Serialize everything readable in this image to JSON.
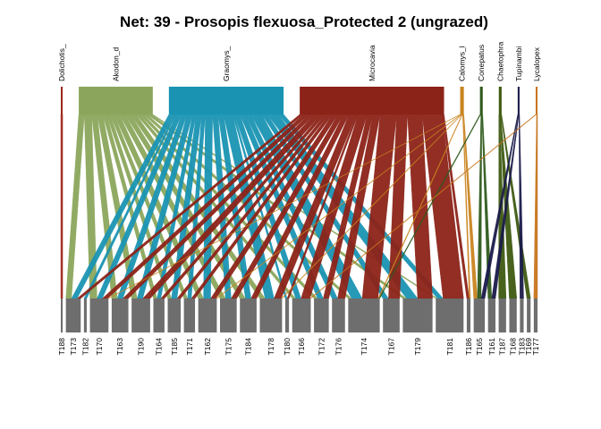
{
  "chart_data": {
    "type": "bipartite-network",
    "title": "Net: 39 - Prosopis flexuosa_Protected 2 (ungrazed)",
    "colors": {
      "upper": {
        "Dolichotis_": "#A0281E",
        "Akodon_d": "#8BA65C",
        "Graomys_": "#1A93B3",
        "Microcavia": "#8C2318",
        "Calomys_": "#C98420",
        "Conepatus": "#2E5A1C",
        "Chaetophractus": "#3E5A12",
        "Tupinambis": "#1A1A4A",
        "Lycalopex": "#C8741E"
      },
      "lower": "#6E6E6E"
    },
    "upper_nodes": [
      {
        "name": "Dolichotis_",
        "label": "Dolichotis_",
        "weight": 1
      },
      {
        "name": "Akodon_d",
        "label": "Akodon_d",
        "weight": 40
      },
      {
        "name": "Graomys_",
        "label": "Graomys_",
        "weight": 62
      },
      {
        "name": "Microcavia",
        "label": "Microcavia",
        "weight": 78
      },
      {
        "name": "Calomys_",
        "label": "Calomys_l",
        "weight": 2
      },
      {
        "name": "Conepatus",
        "label": "Conepatus",
        "weight": 1.5
      },
      {
        "name": "Chaetophractus",
        "label": "Chaetophra",
        "weight": 1.5
      },
      {
        "name": "Tupinambis",
        "label": "Tupinambi",
        "weight": 1
      },
      {
        "name": "Lycalopex",
        "label": "Lycalopex",
        "weight": 1
      }
    ],
    "lower_nodes": [
      {
        "name": "T188",
        "weight": 1
      },
      {
        "name": "T173",
        "weight": 8
      },
      {
        "name": "T182",
        "weight": 1.5
      },
      {
        "name": "T170",
        "weight": 10
      },
      {
        "name": "T163",
        "weight": 9
      },
      {
        "name": "T190",
        "weight": 10
      },
      {
        "name": "T164",
        "weight": 6
      },
      {
        "name": "T185",
        "weight": 7
      },
      {
        "name": "T171",
        "weight": 6
      },
      {
        "name": "T162",
        "weight": 10
      },
      {
        "name": "T175",
        "weight": 9
      },
      {
        "name": "T184",
        "weight": 9
      },
      {
        "name": "T178",
        "weight": 12
      },
      {
        "name": "T180",
        "weight": 2
      },
      {
        "name": "T166",
        "weight": 10
      },
      {
        "name": "T172",
        "weight": 8
      },
      {
        "name": "T176",
        "weight": 7
      },
      {
        "name": "T174",
        "weight": 17
      },
      {
        "name": "T167",
        "weight": 9
      },
      {
        "name": "T179",
        "weight": 16
      },
      {
        "name": "T181",
        "weight": 15
      },
      {
        "name": "T186",
        "weight": 2
      },
      {
        "name": "T165",
        "weight": 6
      },
      {
        "name": "T161",
        "weight": 4
      },
      {
        "name": "T187",
        "weight": 4
      },
      {
        "name": "T168",
        "weight": 4
      },
      {
        "name": "T183",
        "weight": 2
      },
      {
        "name": "T169",
        "weight": 2
      },
      {
        "name": "T177",
        "weight": 2
      }
    ],
    "links": [
      [
        "Dolichotis_",
        "T188",
        1
      ],
      [
        "Akodon_d",
        "T173",
        3
      ],
      [
        "Akodon_d",
        "T170",
        4
      ],
      [
        "Akodon_d",
        "T163",
        3
      ],
      [
        "Akodon_d",
        "T190",
        3
      ],
      [
        "Akodon_d",
        "T164",
        2
      ],
      [
        "Akodon_d",
        "T185",
        2
      ],
      [
        "Akodon_d",
        "T171",
        2
      ],
      [
        "Akodon_d",
        "T162",
        3
      ],
      [
        "Akodon_d",
        "T175",
        3
      ],
      [
        "Akodon_d",
        "T184",
        3
      ],
      [
        "Akodon_d",
        "T178",
        3
      ],
      [
        "Akodon_d",
        "T166",
        2
      ],
      [
        "Akodon_d",
        "T172",
        2
      ],
      [
        "Akodon_d",
        "T174",
        2
      ],
      [
        "Akodon_d",
        "T179",
        2
      ],
      [
        "Akodon_d",
        "T181",
        1
      ],
      [
        "Graomys_",
        "T173",
        3
      ],
      [
        "Graomys_",
        "T182",
        1
      ],
      [
        "Graomys_",
        "T170",
        3
      ],
      [
        "Graomys_",
        "T163",
        3
      ],
      [
        "Graomys_",
        "T190",
        3
      ],
      [
        "Graomys_",
        "T164",
        2
      ],
      [
        "Graomys_",
        "T185",
        3
      ],
      [
        "Graomys_",
        "T171",
        2
      ],
      [
        "Graomys_",
        "T162",
        4
      ],
      [
        "Graomys_",
        "T175",
        3
      ],
      [
        "Graomys_",
        "T184",
        3
      ],
      [
        "Graomys_",
        "T178",
        5
      ],
      [
        "Graomys_",
        "T180",
        1
      ],
      [
        "Graomys_",
        "T166",
        3
      ],
      [
        "Graomys_",
        "T172",
        3
      ],
      [
        "Graomys_",
        "T176",
        3
      ],
      [
        "Graomys_",
        "T174",
        6
      ],
      [
        "Graomys_",
        "T167",
        3
      ],
      [
        "Graomys_",
        "T179",
        6
      ],
      [
        "Graomys_",
        "T181",
        3
      ],
      [
        "Microcavia",
        "T173",
        2
      ],
      [
        "Microcavia",
        "T170",
        3
      ],
      [
        "Microcavia",
        "T163",
        3
      ],
      [
        "Microcavia",
        "T190",
        4
      ],
      [
        "Microcavia",
        "T164",
        2
      ],
      [
        "Microcavia",
        "T185",
        2
      ],
      [
        "Microcavia",
        "T171",
        2
      ],
      [
        "Microcavia",
        "T162",
        3
      ],
      [
        "Microcavia",
        "T175",
        3
      ],
      [
        "Microcavia",
        "T184",
        3
      ],
      [
        "Microcavia",
        "T178",
        4
      ],
      [
        "Microcavia",
        "T180",
        1
      ],
      [
        "Microcavia",
        "T166",
        5
      ],
      [
        "Microcavia",
        "T172",
        3
      ],
      [
        "Microcavia",
        "T176",
        4
      ],
      [
        "Microcavia",
        "T174",
        9
      ],
      [
        "Microcavia",
        "T167",
        6
      ],
      [
        "Microcavia",
        "T179",
        8
      ],
      [
        "Microcavia",
        "T181",
        11
      ],
      [
        "Microcavia",
        "T186",
        1
      ],
      [
        "Calomys_",
        "T170",
        0.5
      ],
      [
        "Calomys_",
        "T162",
        0.5
      ],
      [
        "Calomys_",
        "T178",
        0.5
      ],
      [
        "Calomys_",
        "T174",
        0.5
      ],
      [
        "Calomys_",
        "T186",
        0.5
      ],
      [
        "Calomys_",
        "T165",
        0.5
      ],
      [
        "Conepatus",
        "T174",
        0.5
      ],
      [
        "Conepatus",
        "T165",
        0.5
      ],
      [
        "Conepatus",
        "T161",
        0.5
      ],
      [
        "Chaetophractus",
        "T187",
        0.5
      ],
      [
        "Chaetophractus",
        "T168",
        0.5
      ],
      [
        "Chaetophractus",
        "T169",
        0.5
      ],
      [
        "Tupinambis",
        "T183",
        0.5
      ],
      [
        "Tupinambis",
        "T165",
        0.5
      ],
      [
        "Tupinambis",
        "T161",
        0.5
      ],
      [
        "Lycalopex",
        "T166",
        0.5
      ],
      [
        "Lycalopex",
        "T177",
        0.5
      ]
    ]
  }
}
